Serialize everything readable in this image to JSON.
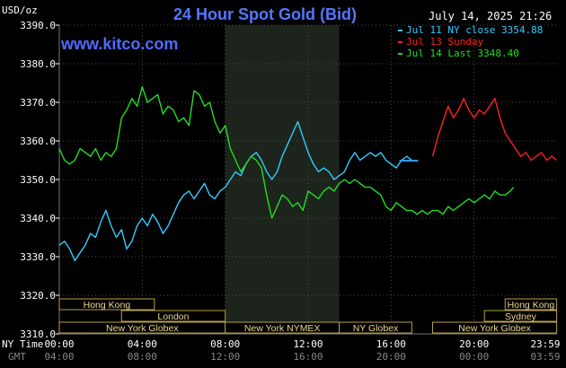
{
  "chart_data": {
    "type": "line",
    "title": "24 Hour Spot Gold (Bid)",
    "watermark": "www.kitco.com",
    "ylabel": "USD/oz",
    "timestamp": "July 14, 2025 21:26",
    "ylim": [
      3310,
      3390
    ],
    "yticks": [
      "3390.0",
      "3380.0",
      "3370.0",
      "3360.0",
      "3350.0",
      "3340.0",
      "3330.0",
      "3320.0",
      "3310.0"
    ],
    "ny_time_label": "NY Time",
    "gmt_label": "GMT",
    "ny_time_ticks": [
      "00:00",
      "04:00",
      "08:00",
      "12:00",
      "16:00",
      "20:00",
      "23:59"
    ],
    "gmt_ticks": [
      "04:00",
      "08:00",
      "12:00",
      "16:00",
      "20:00",
      "00:00",
      "03:59"
    ],
    "legend": [
      {
        "label": "Jul 11 NY close 3354.88",
        "color": "#33ccff"
      },
      {
        "label": "Jul 13 Sunday",
        "color": "#ff2020"
      },
      {
        "label": "Jul 14 Last 3348.40",
        "color": "#22dd22"
      }
    ],
    "reference_close": 3354.88,
    "sessions_row1": [
      {
        "label": "Hong Kong",
        "start": "00:00",
        "end": "04:35"
      },
      {
        "label": "Hong Kong",
        "start": "21:30",
        "end": "23:59"
      }
    ],
    "sessions_row2": [
      {
        "label": "London",
        "start": "03:00",
        "end": "08:00"
      },
      {
        "label": "Sydney",
        "start": "20:30",
        "end": "23:59"
      }
    ],
    "sessions_row3": [
      {
        "label": "New York Globex",
        "start": "00:00",
        "end": "08:00"
      },
      {
        "label": "New York NYMEX",
        "start": "08:00",
        "end": "13:30"
      },
      {
        "label": "NY Globex",
        "start": "13:30",
        "end": "17:00"
      },
      {
        "label": "New York Globex",
        "start": "18:00",
        "end": "23:59"
      }
    ],
    "highlight_period": {
      "start": "08:00",
      "end": "13:30"
    },
    "series": [
      {
        "name": "Jul 11 NY close 3354.88",
        "color": "#33ccff",
        "x": [
          0.0,
          0.25,
          0.5,
          0.75,
          1.0,
          1.25,
          1.5,
          1.75,
          2.0,
          2.25,
          2.5,
          2.75,
          3.0,
          3.25,
          3.5,
          3.75,
          4.0,
          4.25,
          4.5,
          4.75,
          5.0,
          5.25,
          5.5,
          5.75,
          6.0,
          6.25,
          6.5,
          6.75,
          7.0,
          7.25,
          7.5,
          7.75,
          8.0,
          8.25,
          8.5,
          8.75,
          9.0,
          9.25,
          9.5,
          9.75,
          10.0,
          10.25,
          10.5,
          10.75,
          11.0,
          11.25,
          11.5,
          11.75,
          12.0,
          12.25,
          12.5,
          12.75,
          13.0,
          13.25,
          13.5,
          13.75,
          14.0,
          14.25,
          14.5,
          14.75,
          15.0,
          15.25,
          15.5,
          15.75,
          16.0,
          16.25,
          16.5,
          16.75,
          17.0
        ],
        "values": [
          3333,
          3334,
          3332,
          3329,
          3331,
          3333,
          3336,
          3335,
          3339,
          3342,
          3338,
          3335,
          3337,
          3332,
          3334,
          3338,
          3340,
          3338,
          3341,
          3339,
          3336,
          3338,
          3341,
          3344,
          3346,
          3347,
          3345,
          3347,
          3349,
          3346,
          3345,
          3347,
          3348,
          3350,
          3352,
          3351,
          3354,
          3356,
          3357,
          3355,
          3352,
          3350,
          3352,
          3356,
          3359,
          3362,
          3365,
          3361,
          3357,
          3354,
          3352,
          3353,
          3352,
          3350,
          3351,
          3352,
          3355,
          3357,
          3355,
          3356,
          3357,
          3356,
          3357,
          3355,
          3354,
          3353,
          3355,
          3356,
          3355
        ]
      },
      {
        "name": "Jul 13 Sunday",
        "color": "#ff2020",
        "x": [
          18.0,
          18.25,
          18.5,
          18.75,
          19.0,
          19.25,
          19.5,
          19.75,
          20.0,
          20.25,
          20.5,
          20.75,
          21.0,
          21.25,
          21.5,
          21.75,
          22.0,
          22.25,
          22.5,
          22.75,
          23.0,
          23.25,
          23.5,
          23.75,
          23.98
        ],
        "values": [
          3356,
          3361,
          3365,
          3369,
          3366,
          3368,
          3371,
          3368,
          3366,
          3368,
          3367,
          3369,
          3371,
          3366,
          3362,
          3360,
          3358,
          3356,
          3357,
          3355,
          3356,
          3357,
          3355,
          3356,
          3355
        ]
      },
      {
        "name": "Jul 14 Last 3348.40",
        "color": "#22dd22",
        "x": [
          0.0,
          0.25,
          0.5,
          0.75,
          1.0,
          1.25,
          1.5,
          1.75,
          2.0,
          2.25,
          2.5,
          2.75,
          3.0,
          3.25,
          3.5,
          3.75,
          4.0,
          4.25,
          4.5,
          4.75,
          5.0,
          5.25,
          5.5,
          5.75,
          6.0,
          6.25,
          6.5,
          6.75,
          7.0,
          7.25,
          7.5,
          7.75,
          8.0,
          8.25,
          8.5,
          8.75,
          9.0,
          9.25,
          9.5,
          9.75,
          10.0,
          10.25,
          10.5,
          10.75,
          11.0,
          11.25,
          11.5,
          11.75,
          12.0,
          12.25,
          12.5,
          12.75,
          13.0,
          13.25,
          13.5,
          13.75,
          14.0,
          14.25,
          14.5,
          14.75,
          15.0,
          15.25,
          15.5,
          15.75,
          16.0,
          16.25,
          16.5,
          16.75,
          17.0,
          17.25,
          17.5,
          17.75,
          18.0,
          18.25,
          18.5,
          18.75,
          19.0,
          19.25,
          19.5,
          19.75,
          20.0,
          20.25,
          20.5,
          20.75,
          21.0,
          21.25,
          21.5,
          21.75,
          21.9
        ],
        "values": [
          3358,
          3355,
          3354,
          3355,
          3358,
          3357,
          3356,
          3358,
          3355,
          3357,
          3356,
          3358,
          3366,
          3368,
          3371,
          3369,
          3374,
          3370,
          3371,
          3372,
          3367,
          3369,
          3368,
          3365,
          3366,
          3364,
          3373,
          3372,
          3369,
          3370,
          3365,
          3362,
          3364,
          3358,
          3355,
          3352,
          3354,
          3356,
          3355,
          3353,
          3346,
          3340,
          3343,
          3346,
          3345,
          3343,
          3344,
          3342,
          3347,
          3346,
          3345,
          3347,
          3348,
          3347,
          3349,
          3350,
          3349,
          3350,
          3349,
          3348,
          3348,
          3347,
          3346,
          3343,
          3342,
          3344,
          3343,
          3342,
          3342,
          3341,
          3342,
          3341,
          3342,
          3342,
          3341,
          3343,
          3342,
          3343,
          3344,
          3345,
          3344,
          3345,
          3346,
          3345,
          3347,
          3346,
          3346,
          3347,
          3348
        ]
      }
    ]
  }
}
